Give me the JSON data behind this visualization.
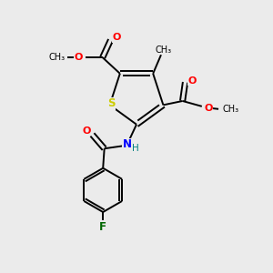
{
  "background_color": "#ebebeb",
  "bond_color": "#000000",
  "S_color": "#cccc00",
  "N_color": "#0000ff",
  "O_color": "#ff0000",
  "F_color": "#006600",
  "H_color": "#008080",
  "figsize": [
    3.0,
    3.0
  ],
  "dpi": 100,
  "xlim": [
    0,
    10
  ],
  "ylim": [
    0,
    10
  ]
}
